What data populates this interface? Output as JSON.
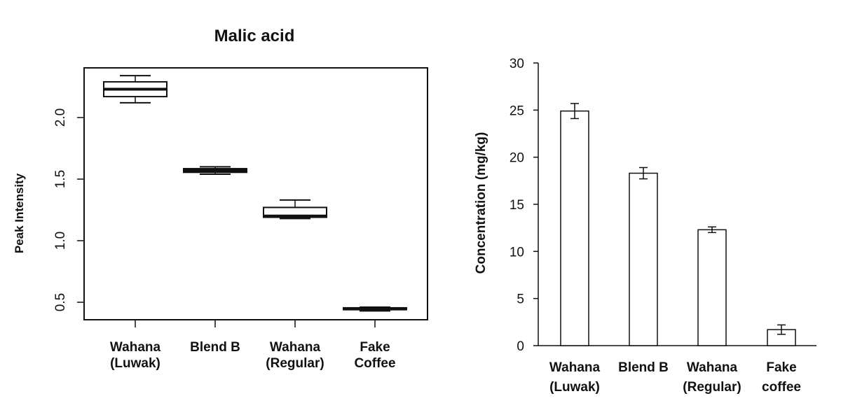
{
  "chart_data": [
    {
      "type": "box",
      "title": "Malic acid",
      "xlabel": "",
      "ylabel": "Peak Intensity",
      "ylim": [
        0.35,
        2.4
      ],
      "yticks": [
        "0.5",
        "1.0",
        "1.5",
        "2.0"
      ],
      "categories": [
        [
          "Wahana",
          "(Luwak)"
        ],
        [
          "Blend B"
        ],
        [
          "Wahana",
          "(Regular)"
        ],
        [
          "Fake",
          "Coffee"
        ]
      ],
      "boxes": [
        {
          "min": 2.12,
          "q1": 2.17,
          "median": 2.23,
          "q3": 2.29,
          "max": 2.34
        },
        {
          "min": 1.54,
          "q1": 1.555,
          "median": 1.57,
          "q3": 1.585,
          "max": 1.6
        },
        {
          "min": 1.18,
          "q1": 1.19,
          "median": 1.2,
          "q3": 1.27,
          "max": 1.33
        },
        {
          "min": 0.43,
          "q1": 0.44,
          "median": 0.445,
          "q3": 0.455,
          "max": 0.46
        }
      ]
    },
    {
      "type": "bar",
      "title": "",
      "xlabel": "",
      "ylabel": "Concentration (mg/kg)",
      "ylim": [
        0,
        30
      ],
      "yticks": [
        "0",
        "5",
        "10",
        "15",
        "20",
        "25",
        "30"
      ],
      "categories": [
        [
          "Wahana",
          "(Luwak)"
        ],
        [
          "Blend B"
        ],
        [
          "Wahana",
          "(Regular)"
        ],
        [
          "Fake",
          "coffee"
        ]
      ],
      "values": [
        24.9,
        18.3,
        12.3,
        1.7
      ],
      "errors": [
        0.8,
        0.6,
        0.3,
        0.5
      ]
    }
  ]
}
